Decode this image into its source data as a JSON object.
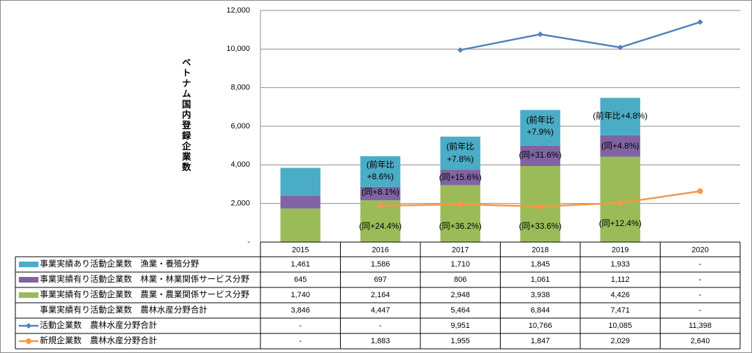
{
  "chart_data": {
    "type": "combo",
    "y_label": "ベトナム国内登録企業数",
    "categories": [
      "2015",
      "2016",
      "2017",
      "2018",
      "2019",
      "2020"
    ],
    "ylim": [
      0,
      12000
    ],
    "yticks": [
      {
        "value": 0,
        "label": "-"
      },
      {
        "value": 2000,
        "label": "2,000"
      },
      {
        "value": 4000,
        "label": "4,000"
      },
      {
        "value": 6000,
        "label": "6,000"
      },
      {
        "value": 8000,
        "label": "8,000"
      },
      {
        "value": 10000,
        "label": "10,000"
      },
      {
        "value": 12000,
        "label": "12,000"
      }
    ],
    "grid": true,
    "series": [
      {
        "name": "事業実績あり活動企業数　漁業・養殖分野",
        "type": "bar",
        "color": "#4BACC6",
        "values": [
          1461,
          1586,
          1710,
          1845,
          1933,
          null
        ],
        "value_labels": [
          "1,461",
          "1,586",
          "1,710",
          "1,845",
          "1,933",
          "-"
        ]
      },
      {
        "name": "事業実績有り活動企業数　林業・林業関係サービス分野",
        "type": "bar",
        "color": "#8064A2",
        "values": [
          645,
          697,
          806,
          1061,
          1112,
          null
        ],
        "value_labels": [
          "645",
          "697",
          "806",
          "1,061",
          "1,112",
          "-"
        ]
      },
      {
        "name": "事業実績有り活動企業数　農業・農業関係サービス分野",
        "type": "bar",
        "color": "#9BBB59",
        "values": [
          1740,
          2164,
          2948,
          3938,
          4426,
          null
        ],
        "value_labels": [
          "1,740",
          "2,164",
          "2,948",
          "3,938",
          "4,426",
          "-"
        ]
      },
      {
        "name": "事業実績有り活動企業数　農林水産分野合計",
        "values": [
          3846,
          4447,
          5464,
          6844,
          7471,
          null
        ],
        "value_labels": [
          "3,846",
          "4,447",
          "5,464",
          "6,844",
          "7,471",
          "-"
        ]
      },
      {
        "name": "活動企業数　農林水産分野合計",
        "type": "line",
        "marker": "diamond",
        "color": "#4F81BD",
        "values": [
          null,
          null,
          9951,
          10766,
          10085,
          11398
        ],
        "value_labels": [
          "-",
          "-",
          "9,951",
          "10,766",
          "10,085",
          "11,398"
        ]
      },
      {
        "name": "新規企業数　農林水産分野合計",
        "type": "line",
        "marker": "circle",
        "color": "#F79646",
        "values": [
          null,
          1883,
          1955,
          1847,
          2029,
          2640
        ],
        "value_labels": [
          "-",
          "1,883",
          "1,955",
          "1,847",
          "2,029",
          "2,640"
        ]
      }
    ],
    "annotations": [
      [
        "(前年比",
        "+8.6%)"
      ],
      [
        "(同+8.1%)"
      ],
      [
        "(同+24.4%)"
      ],
      [
        "(前年比",
        "+7.8%)"
      ],
      [
        "(同+15.6%)"
      ],
      [
        "(同+36.2%)"
      ],
      [
        "(前年比",
        "+7.9%)"
      ],
      [
        "(同+31.6%)"
      ],
      [
        "(同+33.6%)"
      ],
      [
        "(前年比+4.8%)"
      ],
      [
        "(同+4.8%)"
      ],
      [
        "(同+12.4%)"
      ]
    ]
  }
}
